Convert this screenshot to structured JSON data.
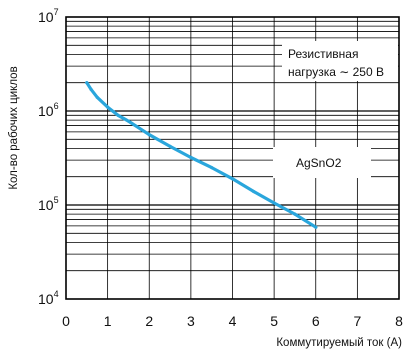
{
  "chart_data": {
    "type": "line",
    "title": "",
    "xlabel": "Коммутируемый ток (A)",
    "ylabel": "Кол-во рабочих циклов",
    "xlim": [
      0,
      8
    ],
    "ylim": [
      10000,
      10000000
    ],
    "y_scale": "log",
    "grid": true,
    "x_ticks": [
      "0",
      "1",
      "2",
      "3",
      "4",
      "5",
      "6",
      "7",
      "8"
    ],
    "y_ticks": [
      {
        "base": "10",
        "exp": "4"
      },
      {
        "base": "10",
        "exp": "5"
      },
      {
        "base": "10",
        "exp": "6"
      },
      {
        "base": "10",
        "exp": "7"
      }
    ],
    "series": [
      {
        "name": "AgSnO2",
        "color": "#2aa6dc",
        "x": [
          0.5,
          0.6,
          0.75,
          1.0,
          1.25,
          1.5,
          2.0,
          2.5,
          3.0,
          3.5,
          4.0,
          4.5,
          5.0,
          5.5,
          6.0
        ],
        "y": [
          2000000,
          1700000,
          1400000,
          1100000,
          900000,
          780000,
          560000,
          420000,
          320000,
          250000,
          190000,
          140000,
          105000,
          80000,
          58000
        ]
      }
    ],
    "annotations": {
      "load_line1": "Резистивная",
      "load_line2": "нагрузка ∼ 250 В",
      "series_label": "AgSnO2"
    }
  }
}
